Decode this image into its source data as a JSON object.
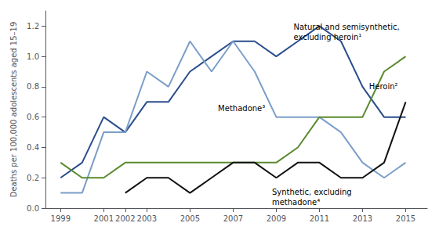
{
  "chart_data": {
    "type": "line",
    "x": [
      1999,
      2000,
      2001,
      2002,
      2003,
      2004,
      2005,
      2006,
      2007,
      2008,
      2009,
      2010,
      2011,
      2012,
      2013,
      2014,
      2015
    ],
    "series": [
      {
        "color": "#2B4D8C",
        "values": [
          0.2,
          0.3,
          0.6,
          0.5,
          0.7,
          0.7,
          0.9,
          1.0,
          1.1,
          1.1,
          1.0,
          1.1,
          1.2,
          1.1,
          0.8,
          0.6,
          0.6
        ]
      },
      {
        "color": "#7B9EC8",
        "values": [
          0.1,
          0.1,
          0.5,
          0.5,
          0.9,
          0.8,
          1.1,
          0.9,
          1.1,
          0.9,
          0.6,
          0.6,
          0.6,
          0.5,
          0.3,
          0.2,
          0.3
        ]
      },
      {
        "color": "#5A8A2E",
        "values": [
          0.3,
          0.2,
          0.2,
          0.3,
          0.3,
          0.3,
          0.3,
          0.3,
          0.3,
          0.3,
          0.3,
          0.4,
          0.6,
          0.6,
          0.6,
          0.9,
          1.0
        ]
      },
      {
        "color": "#111111",
        "values": [
          null,
          null,
          null,
          0.1,
          0.2,
          0.2,
          0.1,
          0.2,
          0.3,
          0.3,
          0.2,
          0.3,
          0.3,
          0.2,
          0.2,
          0.3,
          0.7
        ]
      }
    ],
    "xlim": [
      1998.3,
      2016.0
    ],
    "xticks": [
      1999,
      2001,
      2002,
      2003,
      2005,
      2007,
      2009,
      2011,
      2013,
      2015
    ],
    "ylim": [
      0.0,
      1.3
    ],
    "yticks": [
      {
        "value": 0.0,
        "label": "0.0"
      },
      0.2,
      0.4,
      0.6,
      0.8,
      {
        "value": 1.0,
        "label": "1.0"
      },
      1.2
    ],
    "ylabel": "Deaths per 100,000 adolescents aged 15–19",
    "grid": false,
    "annotations": [
      {
        "text": "Natural and semisynthetic,\nexcluding heroin¹",
        "x": 2009.8,
        "y": 1.23
      },
      {
        "text": "Heroin²",
        "x": 2013.3,
        "y": 0.8
      },
      {
        "text": "Methadone³",
        "x": 2006.3,
        "y": 0.66
      },
      {
        "text": "Synthetic, excluding\nmethadone⁴",
        "x": 2008.8,
        "y": 0.14
      }
    ]
  }
}
